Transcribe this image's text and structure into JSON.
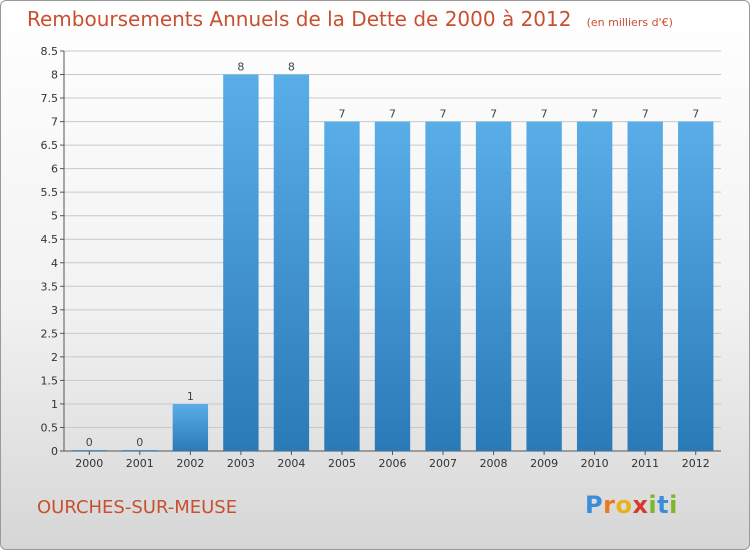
{
  "chart_data": {
    "type": "bar",
    "title": "Remboursements Annuels de la Dette de 2000 à 2012",
    "subtitle": "(en milliers d'€)",
    "categories": [
      "2000",
      "2001",
      "2002",
      "2003",
      "2004",
      "2005",
      "2006",
      "2007",
      "2008",
      "2009",
      "2010",
      "2011",
      "2012"
    ],
    "values": [
      0,
      0,
      1,
      8,
      8,
      7,
      7,
      7,
      7,
      7,
      7,
      7,
      7
    ],
    "data_labels": [
      "0",
      "0",
      "1",
      "8",
      "8",
      "7",
      "7",
      "7",
      "7",
      "7",
      "7",
      "7",
      "7"
    ],
    "ylim": [
      0,
      8.5
    ],
    "yticks": [
      "0",
      "0.5",
      "1",
      "1.5",
      "2",
      "2.5",
      "3",
      "3.5",
      "4",
      "4.5",
      "5",
      "5.5",
      "6",
      "6.5",
      "7",
      "7.5",
      "8",
      "8.5"
    ],
    "xlabel": "",
    "ylabel": "",
    "grid": true,
    "colors": {
      "bar_light": "#5aaee8",
      "bar_dark": "#2a7ab8",
      "grid": "#c8c8c8",
      "title": "#c85030"
    }
  },
  "commune": "OURCHES-SUR-MEUSE",
  "logo": {
    "letters": [
      {
        "char": "P",
        "color": "#3a8ed8"
      },
      {
        "char": "r",
        "color": "#e87a1e"
      },
      {
        "char": "o",
        "color": "#e8b21e"
      },
      {
        "char": "x",
        "color": "#d83a2a"
      },
      {
        "char": "i",
        "color": "#7ab82a"
      },
      {
        "char": "t",
        "color": "#3a8ed8"
      },
      {
        "char": "i",
        "color": "#7ab82a"
      }
    ]
  }
}
